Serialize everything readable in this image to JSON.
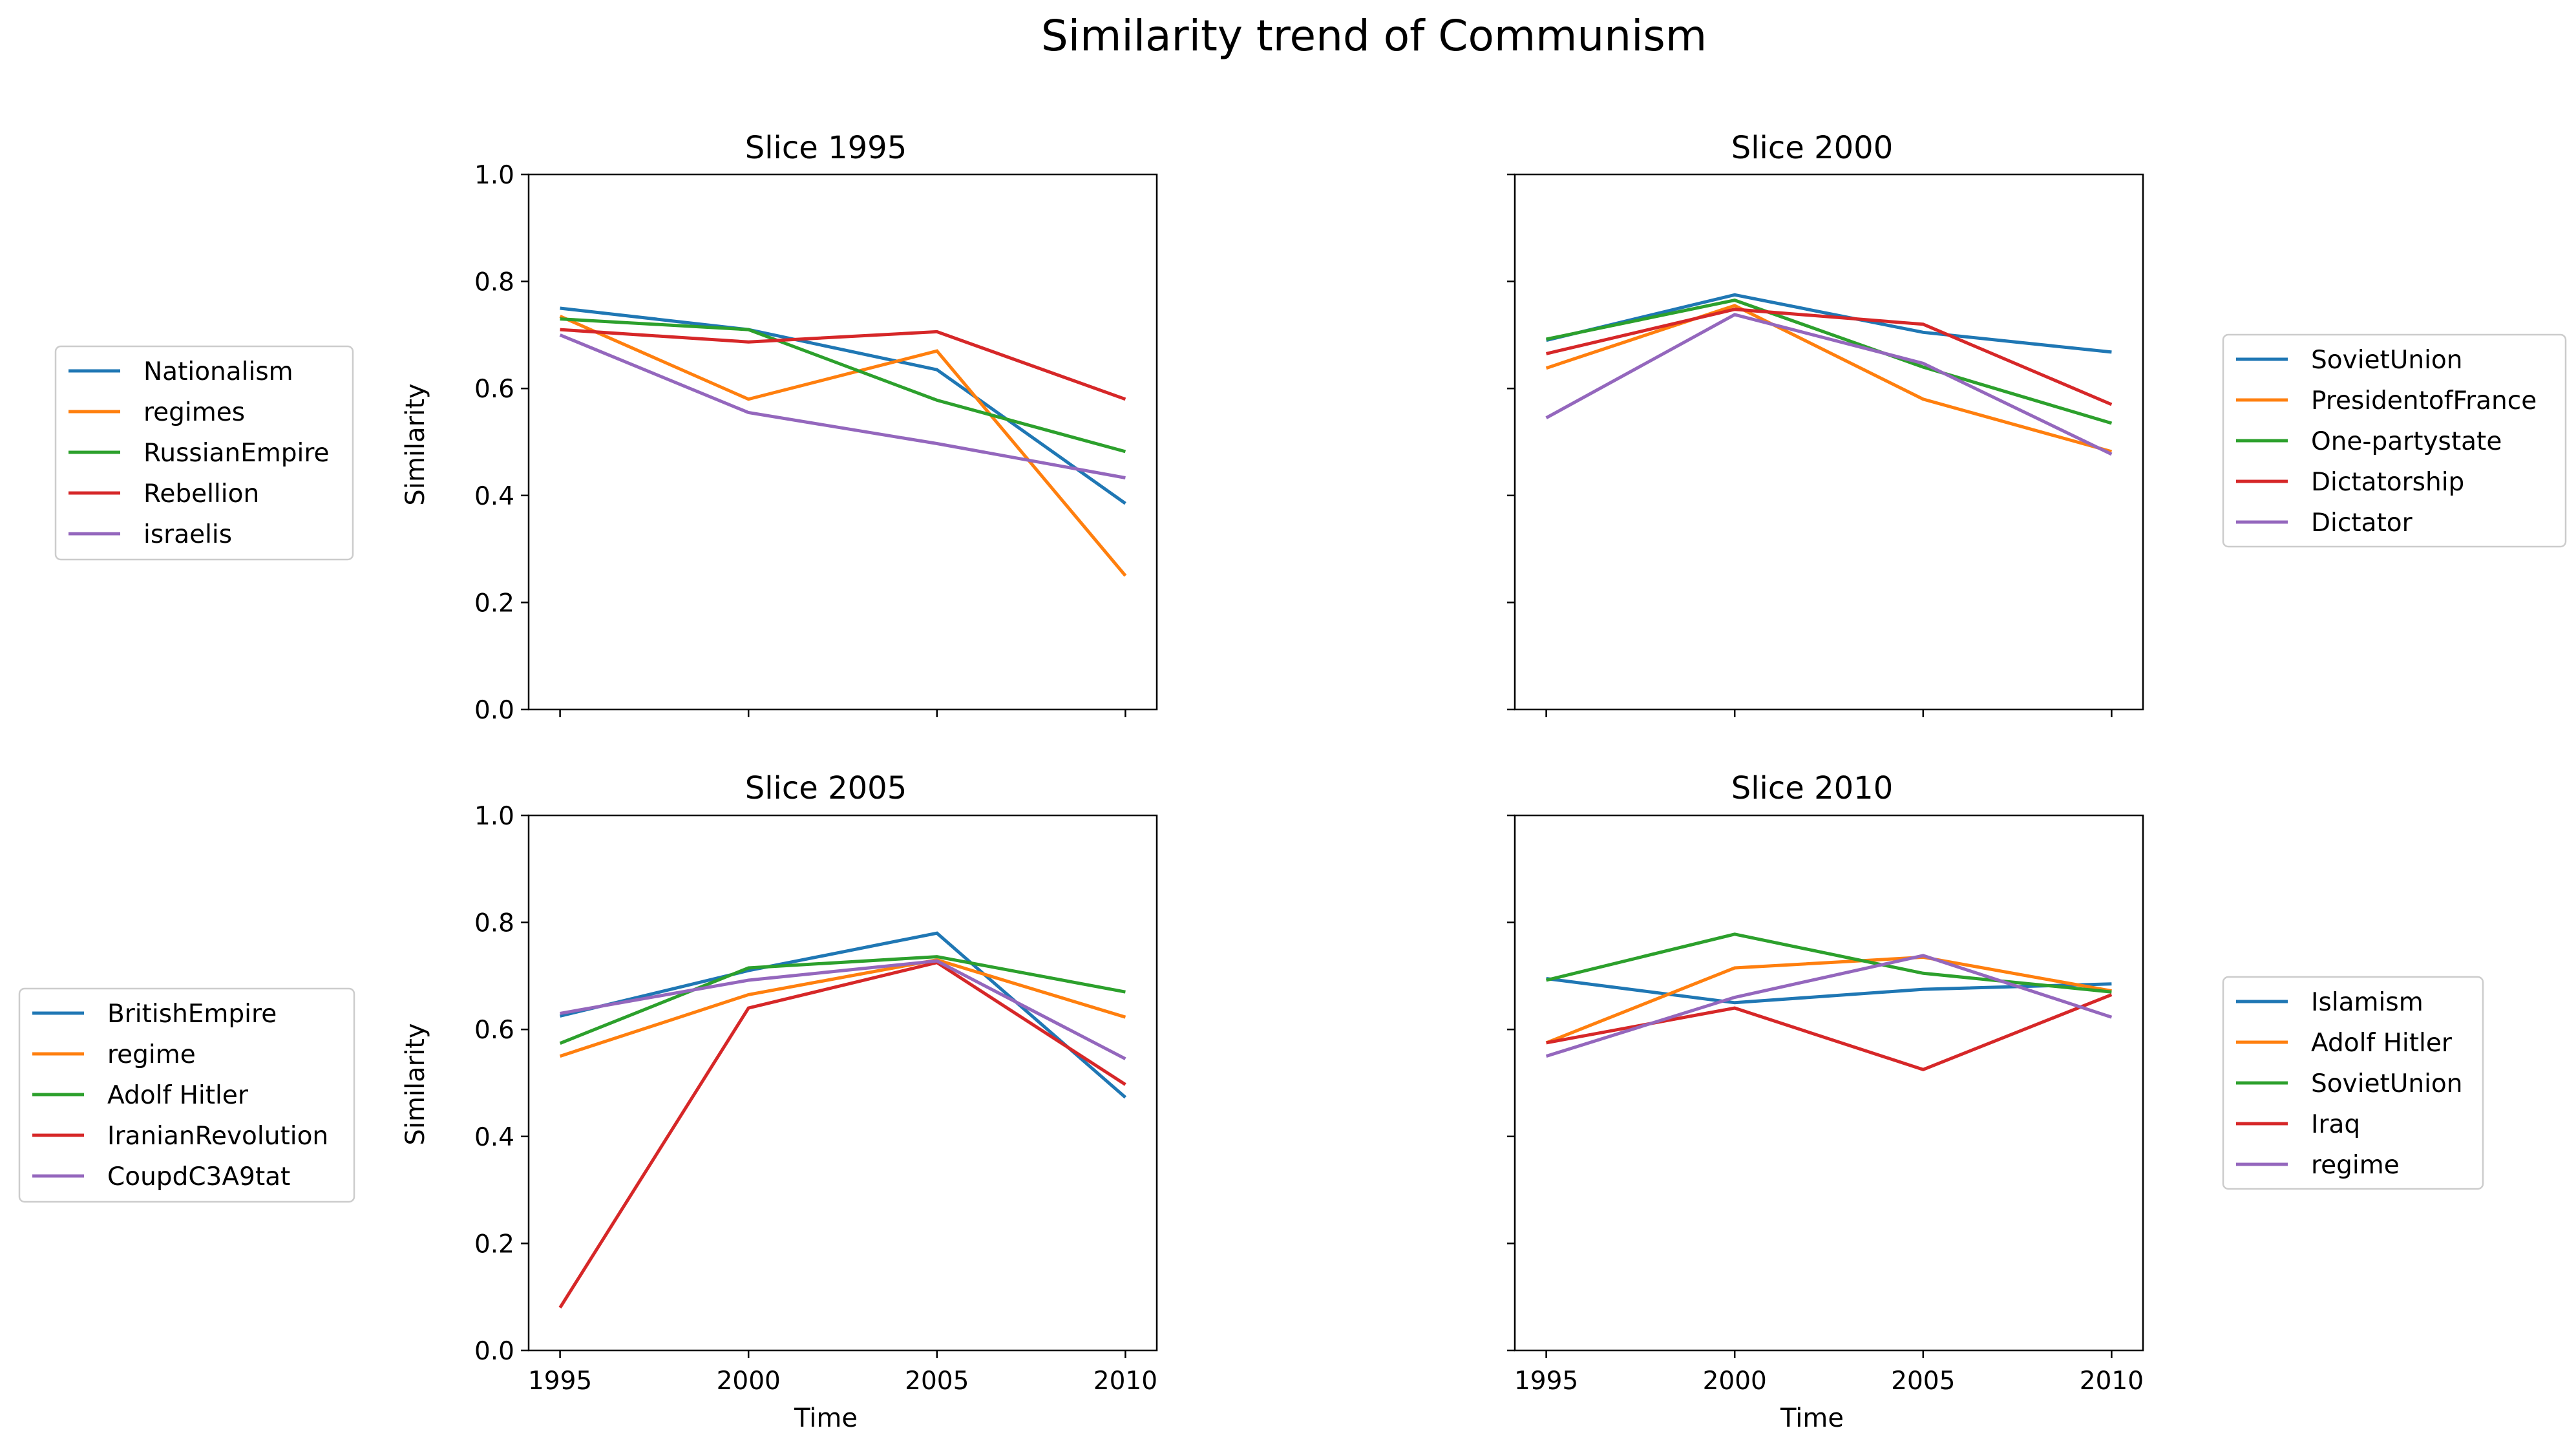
{
  "title": "Similarity trend of Communism",
  "colors": [
    "#1f77b4",
    "#ff7f0e",
    "#2ca02c",
    "#d62728",
    "#9467bd"
  ],
  "chart_data": [
    {
      "type": "line",
      "title": "Slice 1995",
      "x": [
        "1995",
        "2000",
        "2005",
        "2010"
      ],
      "xlabel": "",
      "ylabel": "Similarity",
      "ylim": [
        0,
        1
      ],
      "yticks": [
        "0.0",
        "0.2",
        "0.4",
        "0.6",
        "0.8",
        "1.0"
      ],
      "legend": "left",
      "series": [
        {
          "name": "Nationalism",
          "values": [
            0.75,
            0.71,
            0.635,
            0.385
          ]
        },
        {
          "name": "regimes",
          "values": [
            0.735,
            0.58,
            0.67,
            0.25
          ]
        },
        {
          "name": "RussianEmpire",
          "values": [
            0.73,
            0.71,
            0.578,
            0.482
          ]
        },
        {
          "name": "Rebellion",
          "values": [
            0.71,
            0.687,
            0.706,
            0.58
          ]
        },
        {
          "name": "israelis",
          "values": [
            0.7,
            0.555,
            0.497,
            0.433
          ]
        }
      ]
    },
    {
      "type": "line",
      "title": "Slice 2000",
      "x": [
        "1995",
        "2000",
        "2005",
        "2010"
      ],
      "xlabel": "",
      "ylabel": "",
      "ylim": [
        0,
        1
      ],
      "legend": "right",
      "series": [
        {
          "name": "SovietUnion",
          "values": [
            0.69,
            0.775,
            0.705,
            0.668
          ]
        },
        {
          "name": "PresidentofFrance",
          "values": [
            0.638,
            0.755,
            0.58,
            0.482
          ]
        },
        {
          "name": "One-partystate",
          "values": [
            0.692,
            0.765,
            0.64,
            0.535
          ]
        },
        {
          "name": "Dictatorship",
          "values": [
            0.665,
            0.748,
            0.72,
            0.57
          ]
        },
        {
          "name": "Dictator",
          "values": [
            0.545,
            0.738,
            0.647,
            0.477
          ]
        }
      ]
    },
    {
      "type": "line",
      "title": "Slice 2005",
      "x": [
        "1995",
        "2000",
        "2005",
        "2010"
      ],
      "xticks": [
        "1995",
        "2000",
        "2005",
        "2010"
      ],
      "xlabel": "Time",
      "ylabel": "Similarity",
      "ylim": [
        0,
        1
      ],
      "yticks": [
        "0.0",
        "0.2",
        "0.4",
        "0.6",
        "0.8",
        "1.0"
      ],
      "legend": "left",
      "series": [
        {
          "name": "BritishEmpire",
          "values": [
            0.625,
            0.71,
            0.78,
            0.473
          ]
        },
        {
          "name": "regime",
          "values": [
            0.55,
            0.665,
            0.73,
            0.623
          ]
        },
        {
          "name": "Adolf Hitler",
          "values": [
            0.574,
            0.715,
            0.736,
            0.67
          ]
        },
        {
          "name": "IranianRevolution",
          "values": [
            0.08,
            0.64,
            0.725,
            0.497
          ]
        },
        {
          "name": "CoupdC3A9tat",
          "values": [
            0.63,
            0.692,
            0.728,
            0.545
          ]
        }
      ]
    },
    {
      "type": "line",
      "title": "Slice 2010",
      "x": [
        "1995",
        "2000",
        "2005",
        "2010"
      ],
      "xticks": [
        "1995",
        "2000",
        "2005",
        "2010"
      ],
      "xlabel": "Time",
      "ylabel": "",
      "ylim": [
        0,
        1
      ],
      "legend": "right",
      "series": [
        {
          "name": "Islamism",
          "values": [
            0.695,
            0.65,
            0.675,
            0.685
          ]
        },
        {
          "name": "Adolf Hitler",
          "values": [
            0.575,
            0.715,
            0.735,
            0.672
          ]
        },
        {
          "name": "SovietUnion",
          "values": [
            0.692,
            0.778,
            0.705,
            0.67
          ]
        },
        {
          "name": "Iraq",
          "values": [
            0.575,
            0.64,
            0.525,
            0.665
          ]
        },
        {
          "name": "regime",
          "values": [
            0.55,
            0.66,
            0.738,
            0.623
          ]
        }
      ]
    }
  ]
}
